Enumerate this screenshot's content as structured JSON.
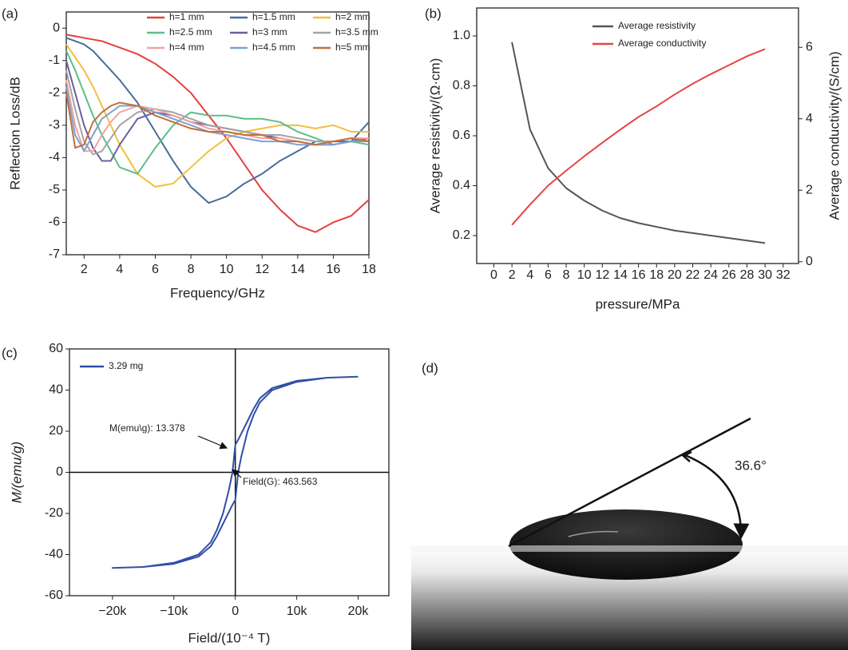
{
  "chart_data": [
    {
      "type": "line",
      "panel_label": "(a)",
      "xlabel": "Frequency/GHz",
      "ylabel": "Reflection Loss/dB",
      "xlim": [
        1,
        18
      ],
      "xticks": [
        2,
        4,
        6,
        8,
        10,
        12,
        14,
        16,
        18
      ],
      "ylim": [
        -7,
        0.5
      ],
      "yticks": [
        -7,
        -6,
        -5,
        -4,
        -3,
        -2,
        -1,
        0
      ],
      "grid": false,
      "legend": "upper center",
      "legend_columns": 3,
      "x": [
        1,
        1.5,
        2,
        2.5,
        3,
        3.5,
        4,
        5,
        6,
        7,
        8,
        9,
        10,
        11,
        12,
        13,
        14,
        15,
        16,
        17,
        18
      ],
      "series": [
        {
          "name": "h=1 mm",
          "color": "#e5403e",
          "values": [
            -0.2,
            -0.25,
            -0.3,
            -0.35,
            -0.4,
            -0.5,
            -0.6,
            -0.8,
            -1.1,
            -1.5,
            -2.0,
            -2.7,
            -3.4,
            -4.2,
            -5.0,
            -5.6,
            -6.1,
            -6.3,
            -6.0,
            -5.8,
            -5.3
          ]
        },
        {
          "name": "h=1.5 mm",
          "color": "#4a6c9b",
          "values": [
            -0.3,
            -0.4,
            -0.5,
            -0.7,
            -1.0,
            -1.3,
            -1.6,
            -2.3,
            -3.2,
            -4.1,
            -4.9,
            -5.4,
            -5.2,
            -4.8,
            -4.5,
            -4.1,
            -3.8,
            -3.5,
            -3.5,
            -3.5,
            -2.9
          ]
        },
        {
          "name": "h=2 mm",
          "color": "#f0c040",
          "values": [
            -0.5,
            -0.9,
            -1.3,
            -1.8,
            -2.4,
            -3.0,
            -3.6,
            -4.5,
            -4.9,
            -4.8,
            -4.3,
            -3.8,
            -3.4,
            -3.2,
            -3.1,
            -3.0,
            -3.0,
            -3.1,
            -3.0,
            -3.2,
            -3.2
          ]
        },
        {
          "name": "h=2.5 mm",
          "color": "#5cbf87",
          "values": [
            -0.7,
            -1.3,
            -2.0,
            -2.7,
            -3.3,
            -3.8,
            -4.3,
            -4.5,
            -3.7,
            -3.0,
            -2.6,
            -2.7,
            -2.7,
            -2.8,
            -2.8,
            -2.9,
            -3.2,
            -3.4,
            -3.6,
            -3.5,
            -3.6
          ]
        },
        {
          "name": "h=3 mm",
          "color": "#6b609c",
          "values": [
            -1.0,
            -2.0,
            -3.0,
            -3.7,
            -4.1,
            -4.1,
            -3.6,
            -2.8,
            -2.6,
            -2.7,
            -2.9,
            -3.0,
            -3.1,
            -3.2,
            -3.3,
            -3.4,
            -3.5,
            -3.6,
            -3.6,
            -3.5,
            -3.4
          ]
        },
        {
          "name": "h=3.5 mm",
          "color": "#a4a4a4",
          "values": [
            -1.3,
            -2.5,
            -3.5,
            -3.9,
            -3.8,
            -3.4,
            -3.0,
            -2.6,
            -2.5,
            -2.6,
            -2.8,
            -3.0,
            -3.1,
            -3.2,
            -3.3,
            -3.3,
            -3.4,
            -3.5,
            -3.5,
            -3.4,
            -3.5
          ]
        },
        {
          "name": "h=4 mm",
          "color": "#f2a3a3",
          "values": [
            -1.6,
            -3.0,
            -3.8,
            -3.8,
            -3.3,
            -2.9,
            -2.6,
            -2.4,
            -2.5,
            -2.7,
            -2.9,
            -3.1,
            -3.2,
            -3.3,
            -3.4,
            -3.4,
            -3.5,
            -3.6,
            -3.5,
            -3.4,
            -3.4
          ]
        },
        {
          "name": "h=4.5 mm",
          "color": "#7fa2d2",
          "values": [
            -1.8,
            -3.3,
            -3.8,
            -3.3,
            -2.8,
            -2.6,
            -2.4,
            -2.4,
            -2.6,
            -2.8,
            -3.0,
            -3.2,
            -3.3,
            -3.4,
            -3.5,
            -3.5,
            -3.6,
            -3.6,
            -3.6,
            -3.5,
            -3.5
          ]
        },
        {
          "name": "h=5 mm",
          "color": "#c2703a",
          "values": [
            -2.0,
            -3.7,
            -3.6,
            -2.9,
            -2.6,
            -2.4,
            -2.3,
            -2.4,
            -2.7,
            -2.9,
            -3.1,
            -3.2,
            -3.2,
            -3.3,
            -3.3,
            -3.5,
            -3.5,
            -3.6,
            -3.5,
            -3.4,
            -3.5
          ]
        }
      ]
    },
    {
      "type": "line",
      "panel_label": "(b)",
      "xlabel": "pressure/MPa",
      "ylabel": "Average resistivity/(Ω·cm)",
      "y2label": "Average conductivity/(S/cm)",
      "xlim": [
        -1.9,
        33.7
      ],
      "xticks": [
        0,
        2,
        4,
        6,
        8,
        10,
        12,
        14,
        16,
        18,
        20,
        22,
        24,
        26,
        28,
        30,
        32
      ],
      "ylim": [
        0.088,
        1.112
      ],
      "yticks": [
        0.2,
        0.4,
        0.6,
        {
          "value": 0.8,
          "label": "0.8"
        },
        {
          "value": 1,
          "label": "1.0"
        }
      ],
      "y2lim": [
        -0.05,
        7.1
      ],
      "y2ticks": [
        0,
        2,
        4,
        6
      ],
      "grid": false,
      "legend": "upper right",
      "x": [
        2,
        4,
        6,
        8,
        10,
        12,
        14,
        16,
        18,
        20,
        22,
        24,
        26,
        28,
        30
      ],
      "series": [
        {
          "name": "Average resistivity",
          "color": "#555555",
          "values": [
            0.975,
            0.625,
            0.47,
            0.39,
            0.34,
            0.3,
            0.27,
            0.25,
            0.235,
            0.22,
            0.21,
            0.2,
            0.19,
            0.18,
            0.17
          ]
        },
        {
          "name": "Average conductivity",
          "color": "#e84444",
          "axis": "y2",
          "values": [
            1.03,
            1.6,
            2.13,
            2.55,
            2.95,
            3.33,
            3.7,
            4.05,
            4.35,
            4.68,
            4.98,
            5.25,
            5.5,
            5.75,
            5.95
          ]
        }
      ]
    },
    {
      "type": "line",
      "panel_label": "(c)",
      "xlabel": "Field/(10⁻⁴ T)",
      "ylabel": "M/(emu/g)",
      "xlim": [
        -27000,
        25000
      ],
      "xticks": [
        {
          "value": -20000,
          "label": "−20k"
        },
        {
          "value": -10000,
          "label": "−10k"
        },
        0,
        {
          "value": 10000,
          "label": "10k"
        },
        {
          "value": 20000,
          "label": "20k"
        }
      ],
      "ylim": [
        -60,
        60
      ],
      "yticks": [
        -60,
        -40,
        -20,
        0,
        20,
        40,
        60
      ],
      "grid": false,
      "legend": "upper left",
      "zero_lines": true,
      "x": [
        20000,
        15000,
        10000,
        6000,
        4000,
        3000,
        2000,
        1000,
        500,
        0,
        -463.563,
        -1000,
        -1500,
        -2000,
        -3000,
        -4000,
        -6000,
        -10000,
        -15000,
        -20000,
        -15000,
        -10000,
        -6000,
        -4000,
        -3000,
        -2000,
        -1000,
        -500,
        0,
        463.563,
        1000,
        1500,
        2000,
        3000,
        4000,
        6000,
        10000,
        15000,
        20000
      ],
      "series": [
        {
          "name": "3.29 mg",
          "color": "#2f4fa8",
          "values": [
            46.5,
            46,
            44.5,
            41,
            36,
            31,
            25,
            19,
            16,
            13.378,
            0,
            -8,
            -14,
            -20,
            -28,
            -34,
            -40,
            -44,
            -46,
            -46.5,
            -46,
            -44.5,
            -41,
            -36,
            -31,
            -25,
            -19,
            -16,
            -13.378,
            0,
            8,
            14,
            20,
            28,
            34,
            40,
            44,
            46,
            46.5
          ]
        }
      ],
      "annotations": [
        {
          "text": "M(emu\\g): 13.378"
        },
        {
          "text": "Field(G): 463.563"
        }
      ]
    }
  ],
  "image_panel": {
    "label": "(d)",
    "angle_label": "36.6°"
  }
}
